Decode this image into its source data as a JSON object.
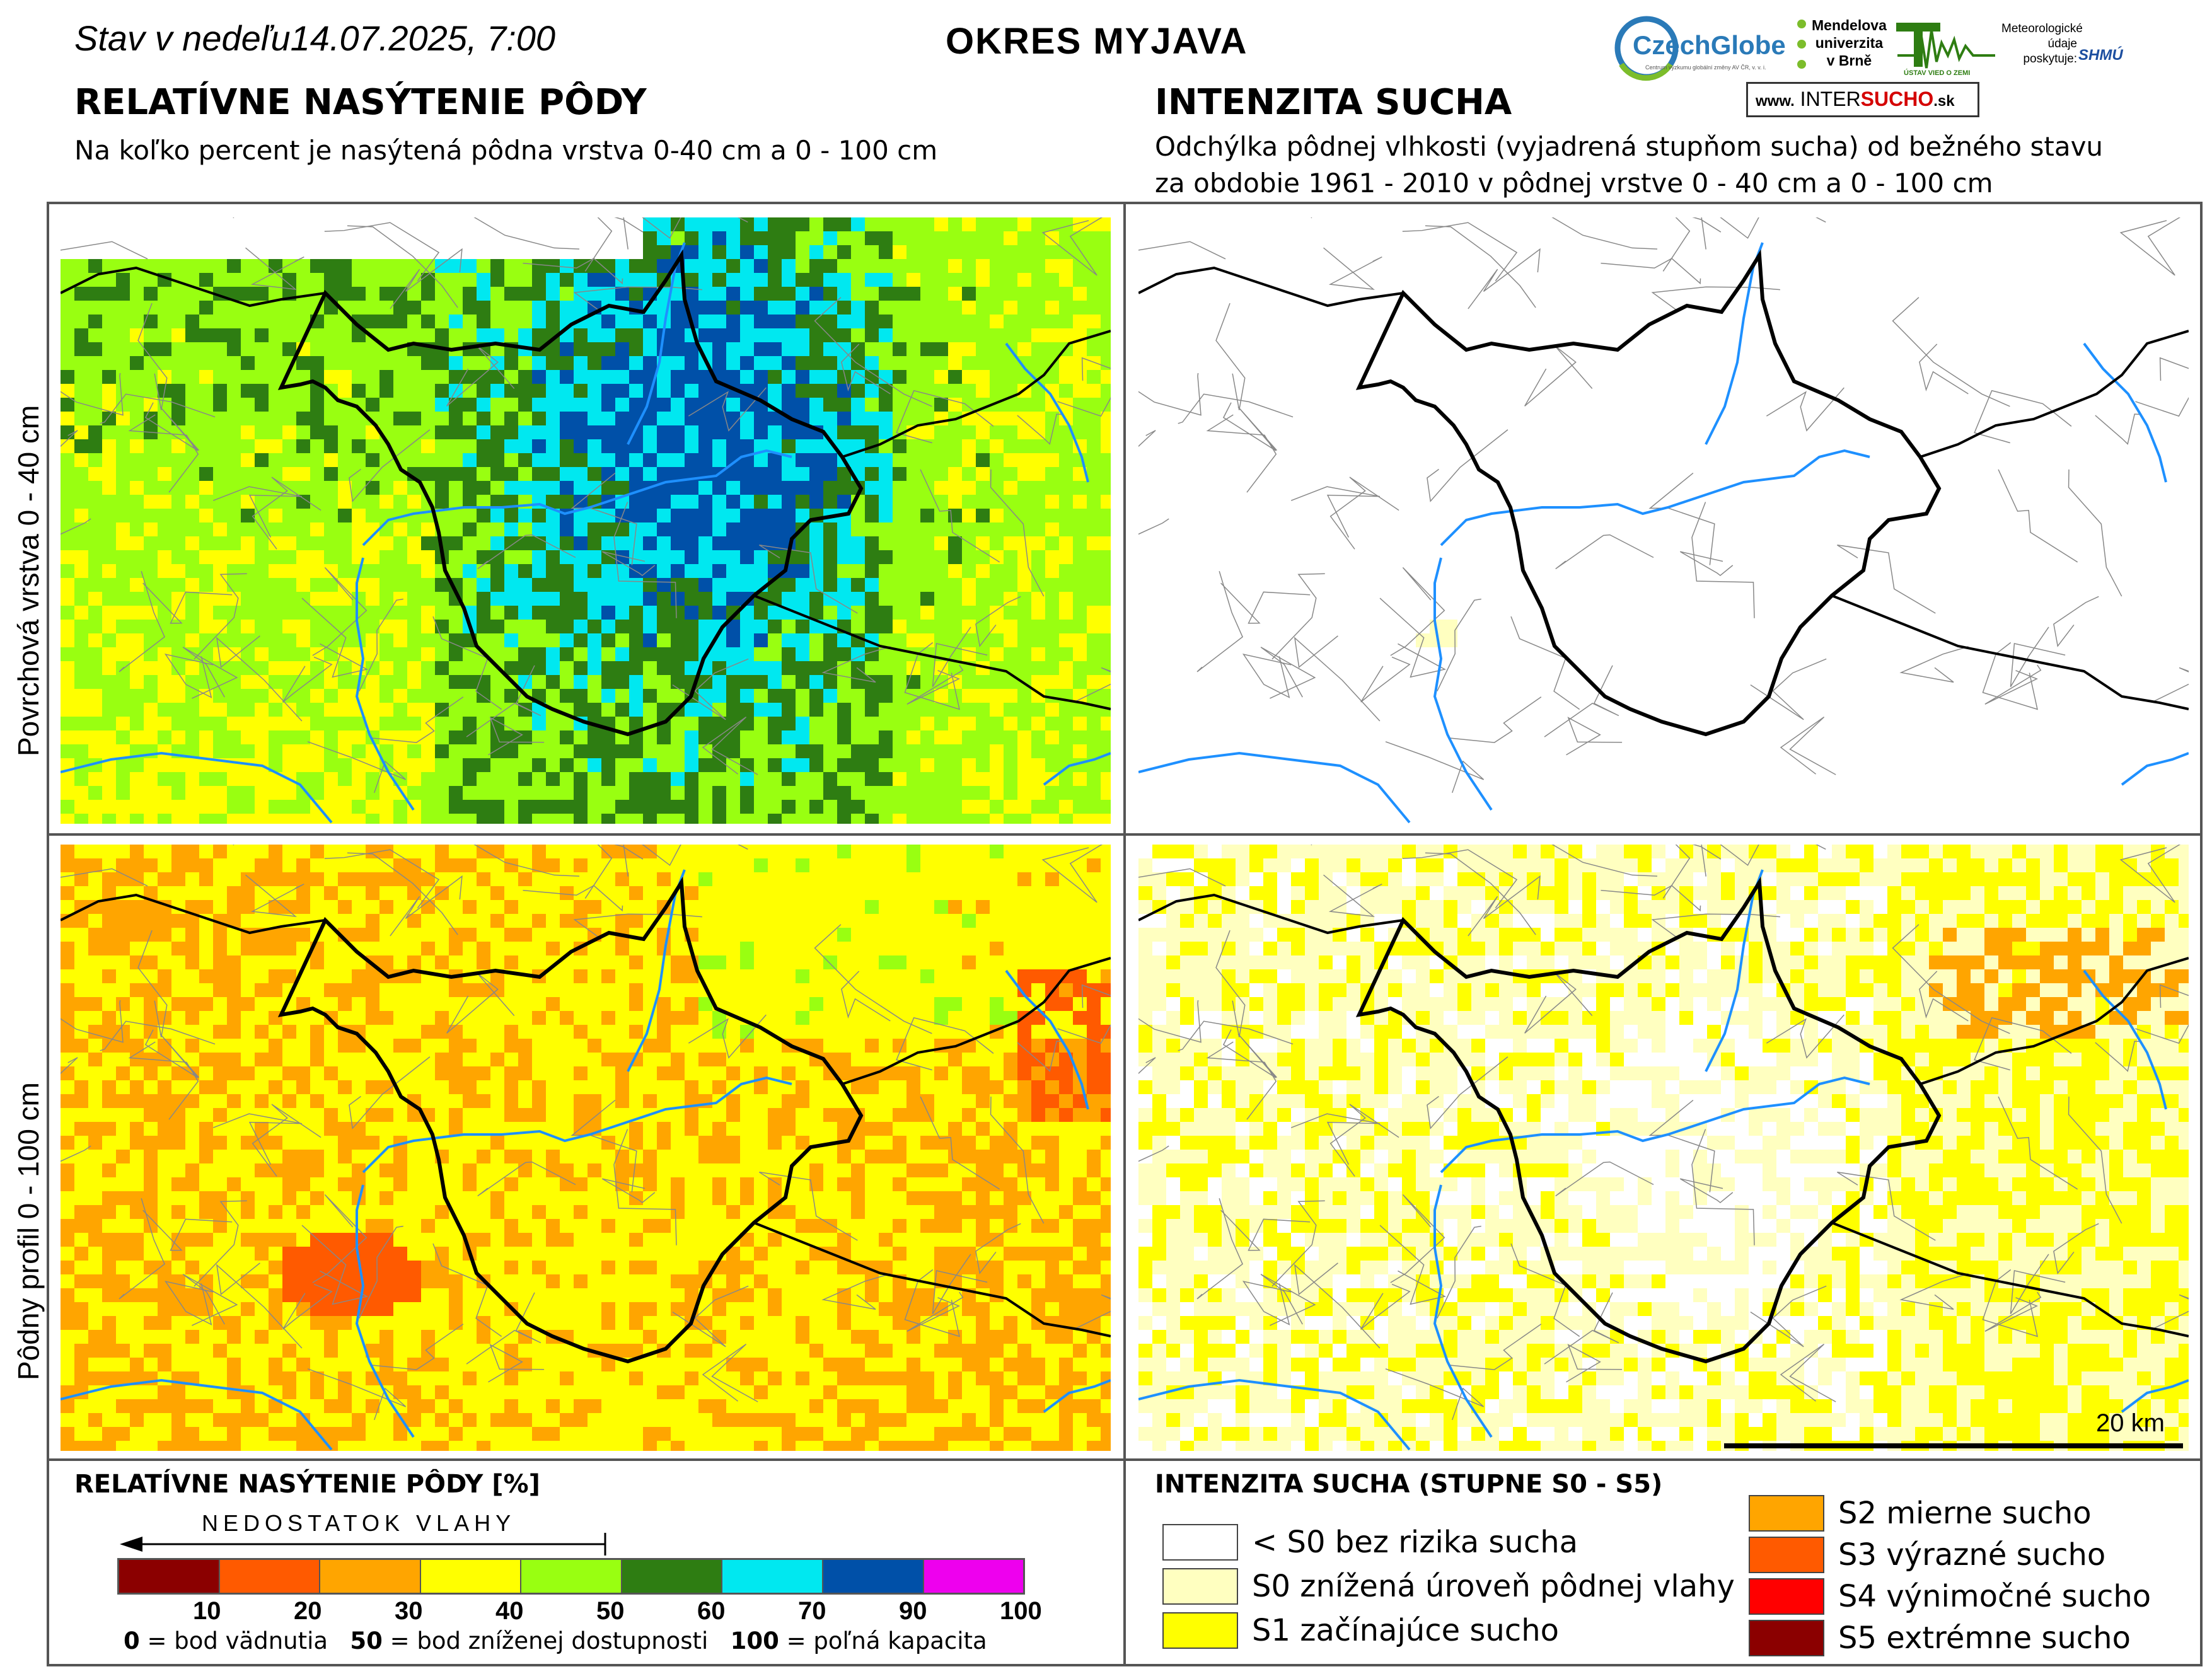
{
  "header": {
    "status_prefix": "Stav  v  nedeľu",
    "date_time": "14.07.2025, 7:00",
    "district": "OKRES  MYJAVA"
  },
  "logos": {
    "czechglobe": "CzechGlobe",
    "czechglobe_sub": "Centrum výzkumu globální změny AV ČR, v. v. i.",
    "mendel": [
      "Mendelova",
      "univerzita",
      "v Brně"
    ],
    "uvz_sub": "ÚSTAV VIED O ZEMI",
    "meteo": [
      "Meteorologické",
      "údaje",
      "poskytuje:"
    ],
    "shmu": "SHMÚ",
    "intersucho_www": "www.",
    "intersucho_a": "INTER",
    "intersucho_b": "SUCHO",
    "intersucho_sk": ".sk"
  },
  "left_section": {
    "title": "RELATÍVNE NASÝTENIE PÔDY",
    "subtitle": "Na koľko percent je nasýtená pôdna vrstva 0-40 cm a 0 - 100 cm"
  },
  "right_section": {
    "title": "INTENZITA SUCHA",
    "subtitle_1": "Odchýlka pôdnej vlhkosti (vyjadrená stupňom sucha) od bežného stavu",
    "subtitle_2": "za obdobie 1961 - 2010 v pôdnej vrstve 0 - 40 cm a 0 - 100 cm"
  },
  "rows": {
    "top": "Povrchová vrstva 0 - 40 cm",
    "bottom": "Pôdny profil 0 - 100 cm"
  },
  "scale_bar": "20 km",
  "saturation_legend": {
    "title": "RELATÍVNE NASÝTENIE PÔDY [%]",
    "arrow_label": "NEDOSTATOK VLAHY",
    "bins": [
      {
        "color": "#8b0000"
      },
      {
        "color": "#ff5a00"
      },
      {
        "color": "#ffa500"
      },
      {
        "color": "#ffff00"
      },
      {
        "color": "#99ff11"
      },
      {
        "color": "#2e7d12"
      },
      {
        "color": "#00e8f0"
      },
      {
        "color": "#0050a8"
      },
      {
        "color": "#ee00ee"
      }
    ],
    "ticks": [
      "10",
      "20",
      "30",
      "40",
      "50",
      "60",
      "70",
      "90",
      "100"
    ],
    "note_0": "0",
    "note_0_text": " = bod vädnutia",
    "note_50": "50",
    "note_50_text": " = bod zníženej dostupnosti",
    "note_100": "100",
    "note_100_text": " = poľná kapacita"
  },
  "drought_legend": {
    "title": "INTENZITA SUCHA (STUPNE S0 - S5)",
    "items_left": [
      {
        "label": "< S0 bez rizika sucha",
        "color": "#ffffff"
      },
      {
        "label": "S0 znížená úroveň pôdnej vlahy",
        "color": "#ffffc0"
      },
      {
        "label": "S1 začínajúce sucho",
        "color": "#ffff00"
      }
    ],
    "items_right": [
      {
        "label": "S2 mierne sucho",
        "color": "#ffa500"
      },
      {
        "label": "S3 výrazné sucho",
        "color": "#ff5a00"
      },
      {
        "label": "S4 výnimočné sucho",
        "color": "#ff0000"
      },
      {
        "label": "S5 extrémne sucho",
        "color": "#8b0000"
      }
    ]
  },
  "map_colors": {
    "river": "#1e90ff",
    "boundary": "#000000",
    "municipality": "#888888"
  }
}
